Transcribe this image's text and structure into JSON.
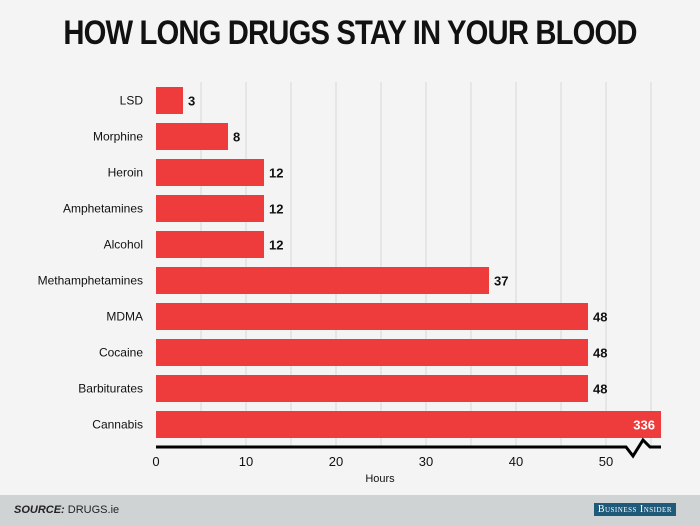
{
  "chart_data": {
    "type": "bar",
    "orientation": "horizontal",
    "title": "HOW LONG DRUGS STAY IN YOUR BLOOD",
    "xlabel": "Hours",
    "ylabel": "",
    "categories": [
      "LSD",
      "Morphine",
      "Heroin",
      "Amphetamines",
      "Alcohol",
      "Methamphetamines",
      "MDMA",
      "Cocaine",
      "Barbiturates",
      "Cannabis"
    ],
    "values": [
      3,
      8,
      12,
      12,
      12,
      37,
      48,
      48,
      48,
      336
    ],
    "xlim": [
      0,
      50
    ],
    "axis_break": true,
    "xticks": [
      0,
      10,
      20,
      30,
      40,
      50
    ],
    "grid": true,
    "bar_color": "#ee3b3b"
  },
  "footer": {
    "source_label": "SOURCE:",
    "source_value": "DRUGS.ie",
    "brand": "Business Insider"
  }
}
